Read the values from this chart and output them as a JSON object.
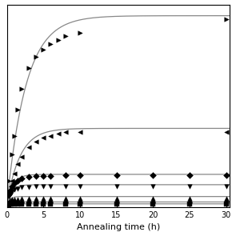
{
  "xlabel": "Annealing time (h)",
  "xlim": [
    0,
    30.5
  ],
  "ylim": [
    0,
    1.08
  ],
  "x_ticks": [
    0,
    5,
    10,
    15,
    20,
    25,
    30
  ],
  "series": [
    {
      "marker": ">",
      "D0": 0.02,
      "Dmax": 1.0,
      "k": 0.38,
      "scatter_x": [
        0,
        0.3,
        0.7,
        1,
        1.5,
        2,
        3,
        4,
        5,
        6,
        7,
        8,
        10,
        30
      ],
      "scatter_y": [
        0.02,
        0.14,
        0.28,
        0.38,
        0.52,
        0.63,
        0.74,
        0.8,
        0.84,
        0.87,
        0.89,
        0.91,
        0.93,
        1.0
      ]
    },
    {
      "marker": "<",
      "D0": 0.02,
      "Dmax": 0.4,
      "k": 0.55,
      "scatter_x": [
        0,
        0.3,
        0.7,
        1,
        1.5,
        2,
        3,
        4,
        5,
        6,
        7,
        8,
        10,
        30
      ],
      "scatter_y": [
        0.02,
        0.08,
        0.14,
        0.18,
        0.23,
        0.27,
        0.32,
        0.35,
        0.37,
        0.38,
        0.39,
        0.4,
        0.4,
        0.4
      ]
    },
    {
      "marker": "D",
      "D0": 0.02,
      "Dmax": 0.155,
      "k": 1.2,
      "scatter_x": [
        0,
        0.3,
        0.5,
        0.7,
        1,
        1.5,
        2,
        3,
        4,
        5,
        6,
        8,
        10,
        15,
        20,
        25,
        30
      ],
      "scatter_y": [
        0.02,
        0.07,
        0.09,
        0.11,
        0.13,
        0.14,
        0.155,
        0.16,
        0.165,
        0.167,
        0.168,
        0.169,
        0.17,
        0.17,
        0.17,
        0.17,
        0.17
      ]
    },
    {
      "marker": "v",
      "D0": 0.02,
      "Dmax": 0.1,
      "k": 1.5,
      "scatter_x": [
        0,
        0.3,
        0.5,
        0.7,
        1,
        1.5,
        2,
        3,
        4,
        5,
        6,
        8,
        10,
        15,
        20,
        25,
        30
      ],
      "scatter_y": [
        0.02,
        0.055,
        0.07,
        0.082,
        0.092,
        0.1,
        0.105,
        0.108,
        0.109,
        0.11,
        0.11,
        0.111,
        0.112,
        0.113,
        0.113,
        0.113,
        0.113
      ]
    },
    {
      "marker": "^",
      "D0": 0.015,
      "Dmax": 0.042,
      "k": 2.5,
      "scatter_x": [
        0,
        0.3,
        0.5,
        0.7,
        1,
        1.5,
        2,
        3,
        4,
        5,
        6,
        8,
        10,
        15,
        20,
        25,
        30
      ],
      "scatter_y": [
        0.015,
        0.032,
        0.038,
        0.041,
        0.043,
        0.044,
        0.045,
        0.046,
        0.047,
        0.047,
        0.047,
        0.048,
        0.048,
        0.048,
        0.048,
        0.048,
        0.048
      ]
    },
    {
      "marker": "o",
      "D0": 0.012,
      "Dmax": 0.016,
      "k": 3.0,
      "scatter_x": [
        0,
        0.3,
        0.5,
        0.7,
        1,
        1.5,
        2,
        3,
        4,
        5,
        6,
        8,
        10,
        15,
        20,
        25,
        30
      ],
      "scatter_y": [
        0.012,
        0.02,
        0.022,
        0.024,
        0.025,
        0.026,
        0.026,
        0.027,
        0.027,
        0.027,
        0.027,
        0.027,
        0.027,
        0.027,
        0.027,
        0.027,
        0.028
      ]
    },
    {
      "marker": "s",
      "D0": 0.01,
      "Dmax": 0.008,
      "k": 4.0,
      "scatter_x": [
        0,
        0.3,
        0.5,
        0.7,
        1,
        1.5,
        2,
        3,
        4,
        5,
        6,
        8,
        10,
        15,
        20,
        25,
        30
      ],
      "scatter_y": [
        0.01,
        0.015,
        0.016,
        0.017,
        0.017,
        0.018,
        0.018,
        0.018,
        0.018,
        0.018,
        0.018,
        0.018,
        0.018,
        0.018,
        0.018,
        0.018,
        0.018
      ]
    }
  ],
  "background_color": "#ffffff",
  "line_color": "#888888",
  "marker_color": "#000000",
  "markersize": 4,
  "linewidth": 0.9,
  "figsize": [
    2.95,
    2.95
  ],
  "dpi": 100
}
